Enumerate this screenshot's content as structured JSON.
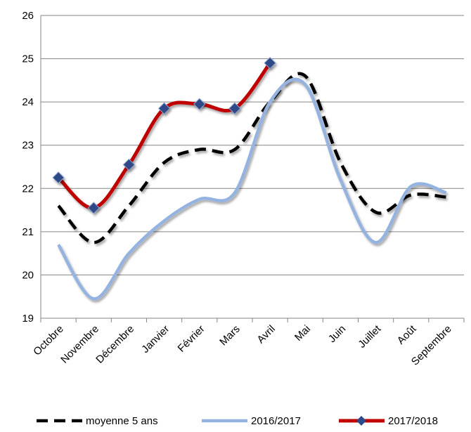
{
  "chart_data": {
    "type": "line",
    "categories": [
      "Octobre",
      "Novembre",
      "Décembre",
      "Janvier",
      "Février",
      "Mars",
      "Avril",
      "Mai",
      "Juin",
      "Juillet",
      "Août",
      "Septembre"
    ],
    "series": [
      {
        "name": "moyenne 5 ans",
        "color": "#000000",
        "style": "dashed",
        "values": [
          21.6,
          20.75,
          21.6,
          22.6,
          22.9,
          22.9,
          24.0,
          24.6,
          22.6,
          21.45,
          21.85,
          21.8
        ]
      },
      {
        "name": "2016/2017",
        "color": "#95b3e0",
        "style": "solid",
        "values": [
          20.7,
          19.45,
          20.5,
          21.25,
          21.75,
          21.9,
          24.0,
          24.4,
          22.2,
          20.75,
          22.05,
          21.9
        ]
      },
      {
        "name": "2017/2018",
        "color": "#c00000",
        "style": "markers",
        "marker_color": "#2e4a86",
        "values": [
          22.25,
          21.55,
          22.55,
          23.85,
          23.95,
          23.85,
          24.9,
          null,
          null,
          null,
          null,
          null
        ]
      }
    ],
    "ylim": [
      19,
      26
    ],
    "yticks": [
      19,
      20,
      21,
      22,
      23,
      24,
      25,
      26
    ],
    "grid": true
  }
}
